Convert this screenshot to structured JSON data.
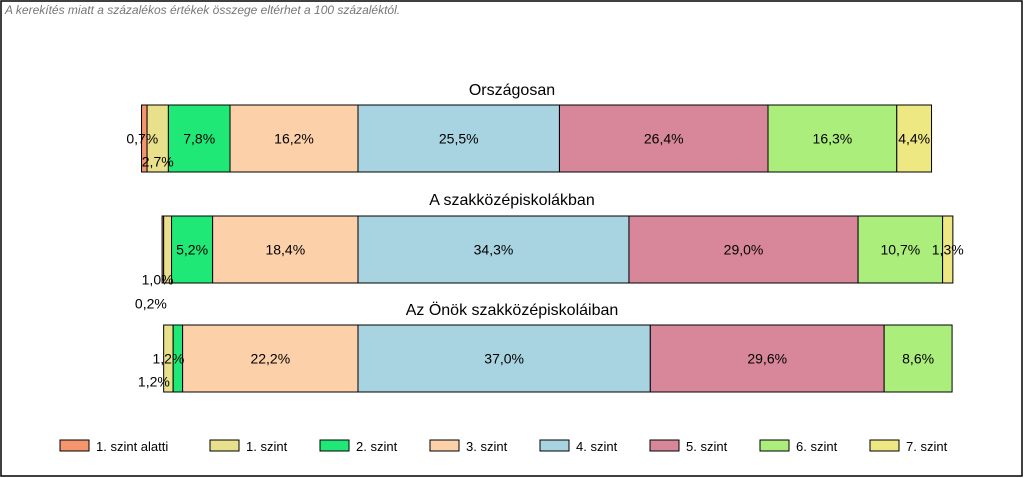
{
  "note": "A kerekítés miatt a  százalékos értékek összege eltérhet a 100 százaléktól.",
  "chart_data": {
    "type": "bar",
    "orientation": "horizontal",
    "stacking": "percent",
    "legend_position": "bottom",
    "grid": false,
    "levels": [
      {
        "name": "1. szint alatti",
        "color": "#F4956E"
      },
      {
        "name": "1. szint",
        "color": "#E9E08C"
      },
      {
        "name": "2. szint",
        "color": "#1FE876"
      },
      {
        "name": "3. szint",
        "color": "#FCD1AA"
      },
      {
        "name": "4. szint",
        "color": "#A8D4E2"
      },
      {
        "name": "5. szint",
        "color": "#D8879A"
      },
      {
        "name": "6. szint",
        "color": "#ABEE7C"
      },
      {
        "name": "7. szint",
        "color": "#EEE882"
      }
    ],
    "panels": [
      {
        "title": "Országosan",
        "values": [
          0.7,
          2.7,
          7.8,
          16.2,
          25.5,
          26.4,
          16.3,
          4.4
        ],
        "labels": [
          "0,7%",
          "2,7%",
          "7,8%",
          "16,2%",
          "25,5%",
          "26,4%",
          "16,3%",
          "4,4%"
        ]
      },
      {
        "title": "A szakközépiskolákban",
        "values": [
          0.2,
          1.0,
          5.2,
          18.4,
          34.3,
          29.0,
          10.7,
          1.3
        ],
        "labels": [
          "0,2%",
          "1,0%",
          "5,2%",
          "18,4%",
          "34,3%",
          "29,0%",
          "10,7%",
          "1,3%"
        ]
      },
      {
        "title": "Az Önök szakközépiskoláiban",
        "values": [
          0,
          1.2,
          1.2,
          22.2,
          37.0,
          29.6,
          8.6,
          0
        ],
        "labels": [
          "",
          "1,2%",
          "1,2%",
          "22,2%",
          "37,0%",
          "29,6%",
          "8,6%",
          ""
        ]
      }
    ]
  }
}
